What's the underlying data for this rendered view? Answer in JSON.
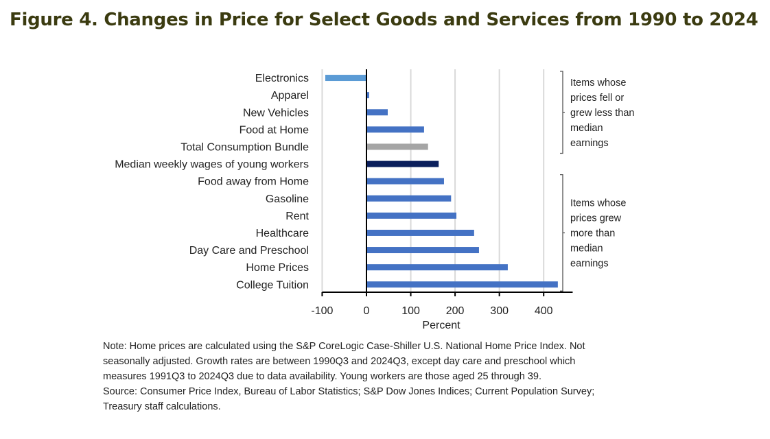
{
  "title": "Figure 4. Changes in Price for Select Goods and Services from 1990 to 2024",
  "chart_data": {
    "type": "bar",
    "orientation": "horizontal",
    "title": "Figure 4. Changes in Price for Select Goods and Services from 1990 to 2024",
    "xlabel": "Percent",
    "ylabel": "",
    "xlim": [
      -100,
      450
    ],
    "xticks": [
      -100,
      0,
      100,
      200,
      300,
      400
    ],
    "grid": true,
    "categories": [
      "Electronics",
      "Apparel",
      "New Vehicles",
      "Food at Home",
      "Total Consumption Bundle",
      "Median weekly wages of young workers",
      "Food away from Home",
      "Gasoline",
      "Rent",
      "Healthcare",
      "Day Care and Preschool",
      "Home Prices",
      "College Tuition"
    ],
    "values": [
      -93,
      6,
      48,
      130,
      139,
      163,
      175,
      191,
      203,
      243,
      254,
      319,
      432
    ],
    "colors": [
      "#5b9bd5",
      "#4472c4",
      "#4472c4",
      "#4472c4",
      "#a5a5a5",
      "#0b1f5c",
      "#4472c4",
      "#4472c4",
      "#4472c4",
      "#4472c4",
      "#4472c4",
      "#4472c4",
      "#4472c4"
    ],
    "annotations": [
      {
        "text": [
          "Items whose",
          "prices fell or",
          "grew less than",
          "median",
          "earnings"
        ],
        "range": [
          "Electronics",
          "Total Consumption Bundle"
        ]
      },
      {
        "text": [
          "Items whose",
          "prices grew",
          "more than",
          "median",
          "earnings"
        ],
        "range": [
          "Food away from Home",
          "College Tuition"
        ]
      }
    ]
  },
  "note": [
    "Note: Home prices are calculated using the S&P CoreLogic Case-Shiller U.S. National Home Price Index. Not",
    "seasonally adjusted. Growth rates are between 1990Q3 and 2024Q3, except day care and preschool which",
    "measures 1991Q3 to 2024Q3 due to data availability.  Young workers are those aged 25 through 39.",
    "Source: Consumer Price Index, Bureau of Labor Statistics; S&P Dow Jones Indices; Current Population Survey;",
    "Treasury staff calculations."
  ]
}
